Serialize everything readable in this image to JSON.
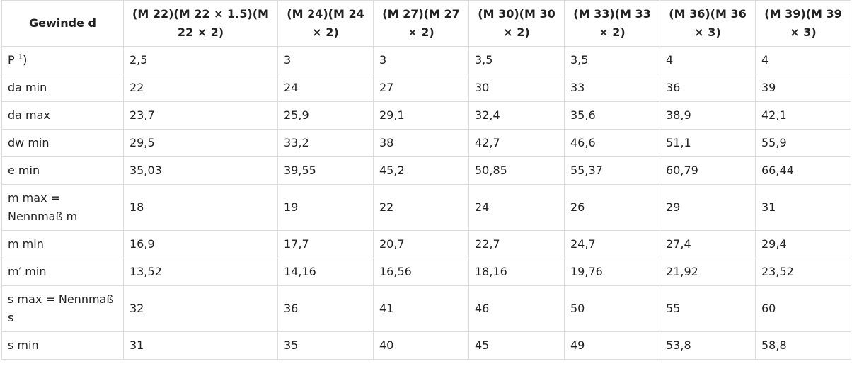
{
  "table": {
    "headers": [
      "Gewinde d",
      "(M 22)(M 22 × 1.5)(M 22 × 2)",
      "(M 24)(M 24 × 2)",
      "(M 27)(M 27 × 2)",
      "(M 30)(M 30 × 2)",
      "(M 33)(M 33 × 2)",
      "(M 36)(M 36 × 3)",
      "(M 39)(M 39 × 3)"
    ],
    "p_row": {
      "label": "P",
      "footnote": "1",
      "label_suffix": ")",
      "values": [
        "2,5",
        "3",
        "3",
        "3,5",
        "3,5",
        "4",
        "4"
      ]
    },
    "rows": [
      {
        "label": "da min",
        "values": [
          "22",
          "24",
          "27",
          "30",
          "33",
          "36",
          "39"
        ]
      },
      {
        "label": "da max",
        "values": [
          "23,7",
          "25,9",
          "29,1",
          "32,4",
          "35,6",
          "38,9",
          "42,1"
        ]
      },
      {
        "label": "dw min",
        "values": [
          "29,5",
          "33,2",
          "38",
          "42,7",
          "46,6",
          "51,1",
          "55,9"
        ]
      },
      {
        "label": "e min",
        "values": [
          "35,03",
          "39,55",
          "45,2",
          "50,85",
          "55,37",
          "60,79",
          "66,44"
        ]
      },
      {
        "label": "m max = Nennmaß m",
        "values": [
          "18",
          "19",
          "22",
          "24",
          "26",
          "29",
          "31"
        ]
      },
      {
        "label": "m min",
        "values": [
          "16,9",
          "17,7",
          "20,7",
          "22,7",
          "24,7",
          "27,4",
          "29,4"
        ]
      },
      {
        "label": "m′ min",
        "values": [
          "13,52",
          "14,16",
          "16,56",
          "18,16",
          "19,76",
          "21,92",
          "23,52"
        ]
      },
      {
        "label": "s max = Nennmaß s",
        "values": [
          "32",
          "36",
          "41",
          "46",
          "50",
          "55",
          "60"
        ]
      },
      {
        "label": "s min",
        "values": [
          "31",
          "35",
          "40",
          "45",
          "49",
          "53,8",
          "58,8"
        ]
      }
    ]
  }
}
